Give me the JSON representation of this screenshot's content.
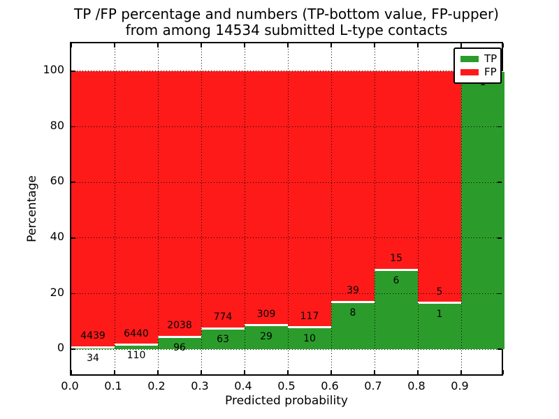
{
  "title": {
    "line1": "TP /FP percentage and numbers (TP-bottom value, FP-upper)",
    "line2": "from among 14534 submitted L-type contacts"
  },
  "axes": {
    "xlabel": "Predicted probability",
    "ylabel": "Percentage",
    "x_tick_labels": [
      "0.0",
      "0.1",
      "0.2",
      "0.3",
      "0.4",
      "0.5",
      "0.6",
      "0.7",
      "0.8",
      "0.9"
    ],
    "y_tick_labels": [
      "0",
      "20",
      "40",
      "60",
      "80",
      "100"
    ],
    "y_tick_values": [
      0,
      20,
      40,
      60,
      80,
      100
    ],
    "ylim": [
      -10,
      110
    ],
    "xlim": [
      0.0,
      1.0
    ],
    "grid": "dotted black"
  },
  "legend": {
    "position": "upper right",
    "items": [
      {
        "label": "TP",
        "color": "#2b9c2b"
      },
      {
        "label": "FP",
        "color": "#ff1a1a"
      }
    ]
  },
  "chart_data": {
    "type": "bar",
    "stacked": true,
    "normalized_to_percent": true,
    "title": "TP /FP percentage and numbers (TP-bottom value, FP-upper) from among 14534 submitted L-type contacts",
    "xlabel": "Predicted probability",
    "ylabel": "Percentage",
    "total_submitted": 14534,
    "bin_edges": [
      0.0,
      0.1,
      0.2,
      0.3,
      0.4,
      0.5,
      0.6,
      0.7,
      0.8,
      0.9,
      1.0
    ],
    "categories": [
      "0.0-0.1",
      "0.1-0.2",
      "0.2-0.3",
      "0.3-0.4",
      "0.4-0.5",
      "0.5-0.6",
      "0.6-0.7",
      "0.7-0.8",
      "0.8-0.9",
      "0.9-1.0"
    ],
    "series": [
      {
        "name": "TP",
        "color": "#2b9c2b",
        "counts": [
          34,
          110,
          96,
          63,
          29,
          10,
          8,
          6,
          1,
          1
        ]
      },
      {
        "name": "FP",
        "color": "#ff1a1a",
        "counts": [
          4439,
          6440,
          2038,
          774,
          309,
          117,
          39,
          15,
          5,
          0
        ]
      }
    ],
    "tp_percent": [
      0.76,
      1.68,
      4.5,
      7.53,
      8.58,
      7.87,
      17.02,
      28.57,
      16.67,
      100.0
    ],
    "ylim": [
      -10,
      110
    ],
    "legend_position": "upper right"
  },
  "colors": {
    "tp": "#2b9c2b",
    "fp": "#ff1a1a",
    "grid": "#000000",
    "background": "#ffffff",
    "bar_edge": "#ffffff"
  }
}
